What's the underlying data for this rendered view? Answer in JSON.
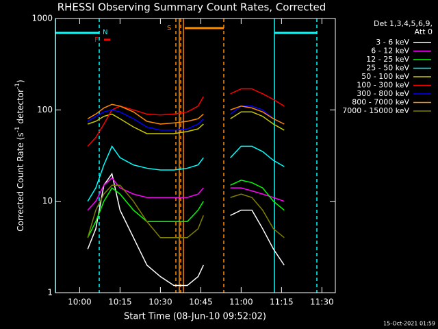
{
  "chart_data": {
    "type": "line",
    "title": "RHESSI Observing Summary Count Rates, Corrected",
    "x_label": "Start Time (08-Jun-10 09:52:02)",
    "y_label_parts": [
      "Corrected Count Rate (s",
      "-1",
      " detector",
      "-1",
      ")"
    ],
    "legend_header": [
      "Det 1,3,4,5,6,9,",
      "Att 0"
    ],
    "footer": "15-Oct-2021 01:59",
    "annotations": [
      "N",
      "S",
      "F"
    ],
    "log_y": true,
    "xlim": [
      "09:51",
      "11:35"
    ],
    "xticks": [
      "10:00",
      "10:15",
      "10:30",
      "10:45",
      "11:00",
      "11:15",
      "11:30"
    ],
    "ylim": [
      1,
      1000
    ],
    "yticks": [
      1,
      10,
      100,
      1000
    ],
    "x": [
      "10:03",
      "10:06",
      "10:09",
      "10:12",
      "10:15",
      "10:20",
      "10:25",
      "10:30",
      "10:35",
      "10:40",
      "10:44",
      "10:46",
      "10:50",
      "10:56",
      "11:00",
      "11:04",
      "11:08",
      "11:12",
      "11:16"
    ],
    "series": [
      {
        "name": "3 - 6 keV",
        "color": "#ffffff",
        "values": [
          3,
          5,
          15,
          20,
          8,
          4,
          2,
          1.5,
          1.2,
          1.2,
          1.5,
          2,
          null,
          7,
          8,
          8,
          5,
          3,
          2
        ]
      },
      {
        "name": "6 - 12 keV",
        "color": "#ff00ff",
        "values": [
          8,
          10,
          15,
          18,
          14,
          12,
          11,
          11,
          11,
          11,
          12,
          14,
          null,
          14,
          14,
          13,
          12,
          11,
          10
        ]
      },
      {
        "name": "12 - 25 keV",
        "color": "#00ff00",
        "values": [
          4,
          6,
          10,
          14,
          12,
          8,
          6,
          6,
          6,
          6,
          8,
          10,
          null,
          15,
          17,
          16,
          14,
          10,
          8
        ]
      },
      {
        "name": "25 - 50 keV",
        "color": "#00ffff",
        "values": [
          10,
          14,
          25,
          40,
          30,
          25,
          23,
          22,
          22,
          23,
          25,
          30,
          null,
          30,
          40,
          40,
          35,
          28,
          24
        ]
      },
      {
        "name": "50 - 100 keV",
        "color": "#c8c800",
        "values": [
          70,
          75,
          85,
          90,
          80,
          65,
          55,
          55,
          55,
          58,
          62,
          70,
          null,
          80,
          95,
          95,
          85,
          70,
          60
        ]
      },
      {
        "name": "100 - 300 keV",
        "color": "#ff0000",
        "values": [
          40,
          50,
          70,
          100,
          110,
          100,
          90,
          88,
          90,
          95,
          110,
          140,
          null,
          150,
          170,
          170,
          150,
          130,
          110
        ]
      },
      {
        "name": "300 - 800 keV",
        "color": "#0000ff",
        "values": [
          75,
          85,
          95,
          100,
          95,
          80,
          65,
          60,
          60,
          62,
          70,
          80,
          null,
          90,
          110,
          110,
          100,
          80,
          70
        ]
      },
      {
        "name": "800 - 7000 keV",
        "color": "#ff8c00",
        "values": [
          80,
          90,
          105,
          115,
          110,
          95,
          75,
          70,
          72,
          75,
          80,
          90,
          null,
          100,
          110,
          105,
          95,
          80,
          70
        ]
      },
      {
        "name": "7000 - 15000 keV",
        "color": "#808000",
        "values": [
          4,
          8,
          12,
          15,
          15,
          10,
          6,
          4,
          4,
          4,
          5,
          7,
          null,
          11,
          12,
          11,
          8,
          5,
          4
        ]
      }
    ]
  }
}
